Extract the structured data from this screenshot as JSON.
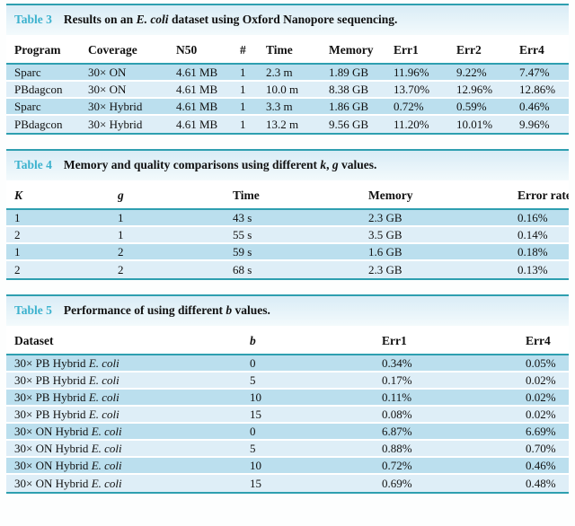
{
  "theme": {
    "teal_rule": "#2e9fb0",
    "label_color": "#3cb2ce",
    "caption_bg_top": "#d9ecf6",
    "caption_bg_bottom": "#f3fafc",
    "row_dark": "#bbdfee",
    "row_light": "#deeef7"
  },
  "tables": [
    {
      "label": "Table 3",
      "caption": "Results on an *E. coli* dataset using Oxford Nanopore sequencing.",
      "columns": [
        "Program",
        "Coverage",
        "N50",
        "#",
        "Time",
        "Memory",
        "Err1",
        "Err2",
        "Err4"
      ],
      "rows": [
        [
          "Sparc",
          "30× ON",
          "4.61 MB",
          "1",
          "2.3 m",
          "1.89 GB",
          "11.96%",
          "9.22%",
          "7.47%"
        ],
        [
          "PBdagcon",
          "30× ON",
          "4.61 MB",
          "1",
          "10.0 m",
          "8.38 GB",
          "13.70%",
          "12.96%",
          "12.86%"
        ],
        [
          "Sparc",
          "30× Hybrid",
          "4.61 MB",
          "1",
          "3.3 m",
          "1.86 GB",
          "0.72%",
          "0.59%",
          "0.46%"
        ],
        [
          "PBdagcon",
          "30× Hybrid",
          "4.61 MB",
          "1",
          "13.2 m",
          "9.56 GB",
          "11.20%",
          "10.01%",
          "9.96%"
        ]
      ]
    },
    {
      "label": "Table 4",
      "caption": "Memory and quality comparisons using different *k*, *g* values.",
      "columns": [
        "*K*",
        "*g*",
        "Time",
        "Memory",
        "Error rate"
      ],
      "rows": [
        [
          "1",
          "1",
          "43 s",
          "2.3 GB",
          "0.16%"
        ],
        [
          "2",
          "1",
          "55 s",
          "3.5 GB",
          "0.14%"
        ],
        [
          "1",
          "2",
          "59 s",
          "1.6 GB",
          "0.18%"
        ],
        [
          "2",
          "2",
          "68 s",
          "2.3 GB",
          "0.13%"
        ]
      ]
    },
    {
      "label": "Table 5",
      "caption": "Performance of using different *b* values.",
      "columns": [
        "Dataset",
        "*b*",
        "Err1",
        "Err4"
      ],
      "rows": [
        [
          "30× PB Hybrid *E. coli*",
          "0",
          "0.34%",
          "0.05%"
        ],
        [
          "30× PB Hybrid *E. coli*",
          "5",
          "0.17%",
          "0.02%"
        ],
        [
          "30× PB Hybrid *E. coli*",
          "10",
          "0.11%",
          "0.02%"
        ],
        [
          "30× PB Hybrid *E. coli*",
          "15",
          "0.08%",
          "0.02%"
        ],
        [
          "30× ON Hybrid *E. coli*",
          "0",
          "6.87%",
          "6.69%"
        ],
        [
          "30× ON Hybrid *E. coli*",
          "5",
          "0.88%",
          "0.70%"
        ],
        [
          "30× ON Hybrid *E. coli*",
          "10",
          "0.72%",
          "0.46%"
        ],
        [
          "30× ON Hybrid *E. coli*",
          "15",
          "0.69%",
          "0.48%"
        ]
      ]
    }
  ]
}
